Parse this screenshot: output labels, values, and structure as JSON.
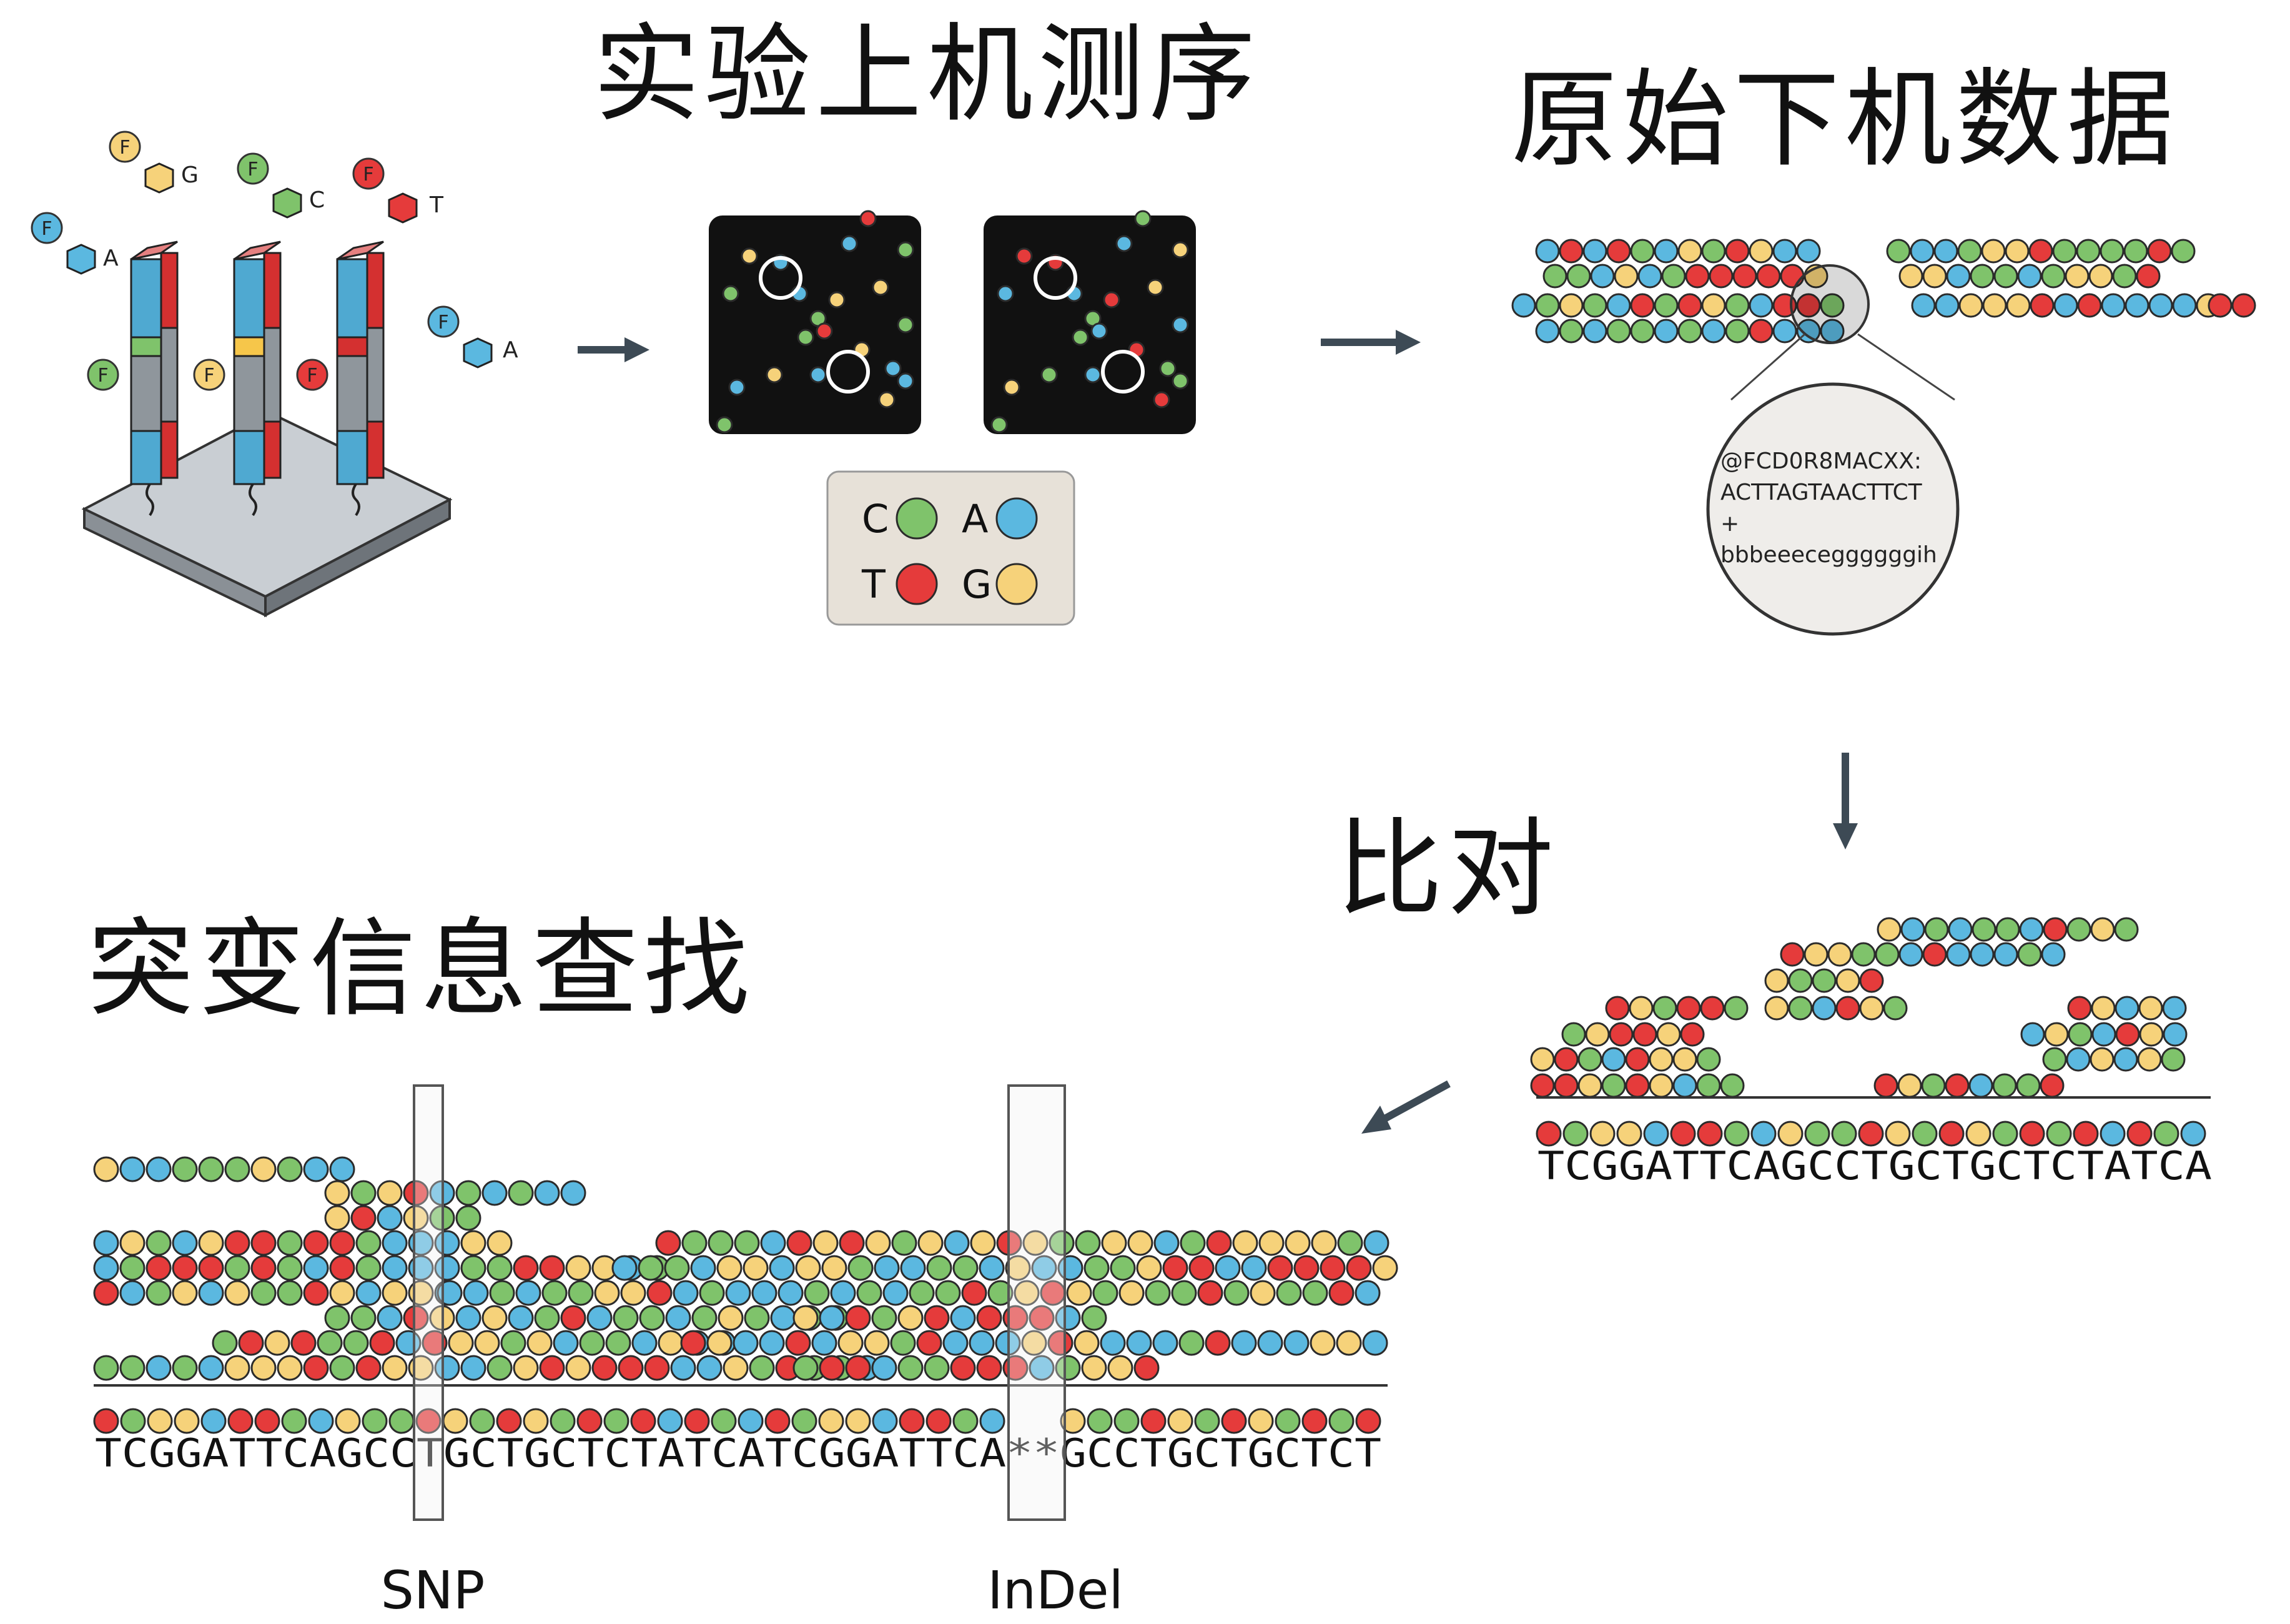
{
  "titles": {
    "sequencing": "实验上机测序",
    "raw_data": "原始下机数据",
    "alignment": "比对",
    "variant_search": "突变信息查找"
  },
  "colors": {
    "A": "#5bb8e0",
    "C": "#7fc36b",
    "G": "#f6d27a",
    "T": "#e53b3b",
    "arrow": "#3d4a55",
    "chip_panel": "#111111",
    "legend_bg": "#e7e1d8",
    "box_stroke": "#555555"
  },
  "nucleotide_tags": [
    {
      "letter": "G"
    },
    {
      "letter": "C"
    },
    {
      "letter": "T"
    },
    {
      "letter": "A"
    },
    {
      "letter": "A"
    }
  ],
  "flag_letter": "F",
  "legend": [
    {
      "base": "C",
      "label": "C"
    },
    {
      "base": "A",
      "label": "A"
    },
    {
      "base": "T",
      "label": "T"
    },
    {
      "base": "G",
      "label": "G"
    }
  ],
  "fastq": {
    "line1": "@FCD0R8MACXX:",
    "line2": "ACTTAGTAACTTCT",
    "line3": "+",
    "line4": "bbbeeeceggggggih"
  },
  "reference_alignment": "TCGGATTCAGCCTGCTGCTCTATCA",
  "reference_variants": "TCGGATTCAGCCTGCTGCTCTATCATCGGATTCA**GCCTGCTGCTCT",
  "variant_labels": {
    "snp": "SNP",
    "indel": "InDel"
  }
}
